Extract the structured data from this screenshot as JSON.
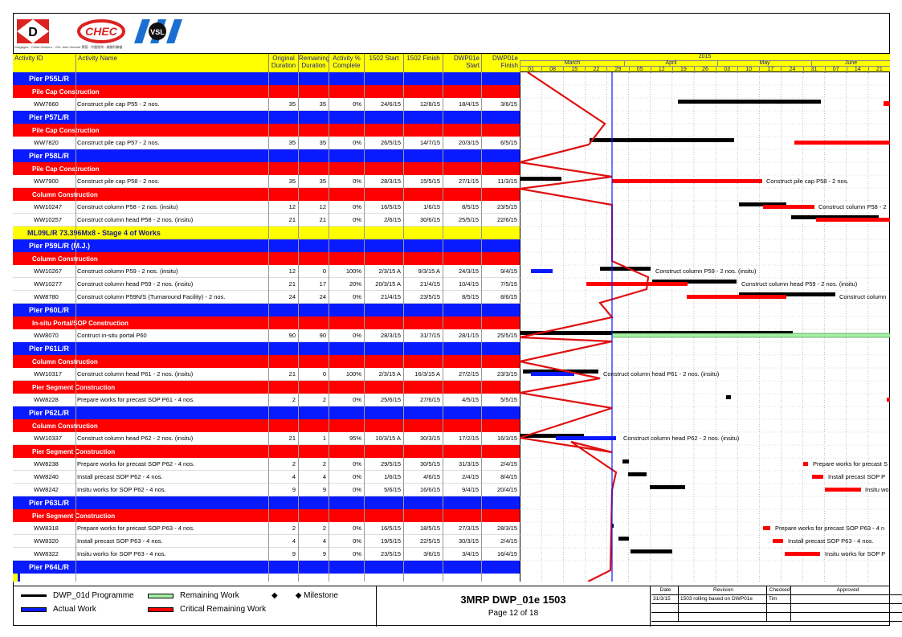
{
  "header": {
    "logos": [
      "D",
      "CHEC",
      "VSL"
    ],
    "tagline": "Dragages - China Harbour - VSL Joint Venture 寶基 - 中國港灣 - 威勝利聯營",
    "columns": [
      "Activity ID",
      "Activity Name",
      "Original Duration",
      "Remaining Duration",
      "Activity % Complete",
      "1502 Start",
      "1502 Finish",
      "DWP01e Start",
      "DWP01e Finish"
    ],
    "year": "2015",
    "months": [
      "March",
      "April",
      "May",
      "June"
    ],
    "days": [
      "01",
      "08",
      "15",
      "22",
      "29",
      "05",
      "12",
      "19",
      "26",
      "03",
      "10",
      "17",
      "24",
      "31",
      "07",
      "14",
      "21"
    ]
  },
  "rows": [
    {
      "type": "pier",
      "label": "Pier P55L/R"
    },
    {
      "type": "group",
      "label": "Pile Cap Construction"
    },
    {
      "type": "act",
      "id": "WW7660",
      "name": "Construct pile cap P55 - 2 nos.",
      "od": "35",
      "rd": "35",
      "pc": "0%",
      "s": "24/6/15",
      "f": "12/8/15",
      "ds": "18/4/15",
      "df": "3/6/15"
    },
    {
      "type": "pier",
      "label": "Pier P57L/R"
    },
    {
      "type": "group",
      "label": "Pile Cap Construction"
    },
    {
      "type": "act",
      "id": "WW7820",
      "name": "Construct pile cap P57 - 2 nos.",
      "od": "35",
      "rd": "35",
      "pc": "0%",
      "s": "26/5/15",
      "f": "14/7/15",
      "ds": "20/3/15",
      "df": "6/5/15"
    },
    {
      "type": "pier",
      "label": "Pier P58L/R"
    },
    {
      "type": "group",
      "label": "Pile Cap Construction"
    },
    {
      "type": "act",
      "id": "WW7900",
      "name": "Construct pile cap P58 - 2 nos.",
      "od": "35",
      "rd": "35",
      "pc": "0%",
      "s": "28/3/15",
      "f": "15/5/15",
      "ds": "27/1/15",
      "df": "11/3/15"
    },
    {
      "type": "group",
      "label": "Column Construction"
    },
    {
      "type": "act",
      "id": "WW10247",
      "name": "Construct column P58 - 2 nos. (insitu)",
      "od": "12",
      "rd": "12",
      "pc": "0%",
      "s": "16/5/15",
      "f": "1/6/15",
      "ds": "8/5/15",
      "df": "23/5/15"
    },
    {
      "type": "act",
      "id": "WW10257",
      "name": "Construct column head P58 - 2 nos. (insitu)",
      "od": "21",
      "rd": "21",
      "pc": "0%",
      "s": "2/6/15",
      "f": "30/6/15",
      "ds": "25/5/15",
      "df": "22/6/15"
    },
    {
      "type": "stage",
      "label": "ML09L/R 73.396Mx8 - Stage 4 of Works"
    },
    {
      "type": "pier",
      "label": "Pier P59L/R (M.J.)"
    },
    {
      "type": "group",
      "label": "Column Construction"
    },
    {
      "type": "act",
      "id": "WW10267",
      "name": "Construct column P59 - 2 nos. (insitu)",
      "od": "12",
      "rd": "0",
      "pc": "100%",
      "s": "2/3/15 A",
      "f": "9/3/15 A",
      "ds": "24/3/15",
      "df": "9/4/15"
    },
    {
      "type": "act",
      "id": "WW10277",
      "name": "Construct column head P59 - 2 nos. (insitu)",
      "od": "21",
      "rd": "17",
      "pc": "20%",
      "s": "20/3/15 A",
      "f": "21/4/15",
      "ds": "10/4/15",
      "df": "7/5/15"
    },
    {
      "type": "act",
      "id": "WW8780",
      "name": "Construct column P59N/S (Turnaround Facility) - 2 nos.",
      "od": "24",
      "rd": "24",
      "pc": "0%",
      "s": "21/4/15",
      "f": "23/5/15",
      "ds": "8/5/15",
      "df": "8/6/15"
    },
    {
      "type": "pier",
      "label": "Pier P60L/R"
    },
    {
      "type": "group",
      "label": "In-situ Portal/SOP Construction"
    },
    {
      "type": "act",
      "id": "WW8070",
      "name": "Contruct in-situ portal P60",
      "od": "90",
      "rd": "90",
      "pc": "0%",
      "s": "28/3/15",
      "f": "31/7/15",
      "ds": "28/1/15",
      "df": "25/5/15"
    },
    {
      "type": "pier",
      "label": "Pier P61L/R"
    },
    {
      "type": "group",
      "label": "Column Construction"
    },
    {
      "type": "act",
      "id": "WW10317",
      "name": "Construct column head P61 - 2 nos. (insitu)",
      "od": "21",
      "rd": "0",
      "pc": "100%",
      "s": "2/3/15 A",
      "f": "16/3/15 A",
      "ds": "27/2/15",
      "df": "23/3/15"
    },
    {
      "type": "group",
      "label": "Pier Segment Construction"
    },
    {
      "type": "act",
      "id": "WW8228",
      "name": "Prepare works for precast SOP P61 - 4 nos.",
      "od": "2",
      "rd": "2",
      "pc": "0%",
      "s": "25/6/15",
      "f": "27/6/15",
      "ds": "4/5/15",
      "df": "5/5/15"
    },
    {
      "type": "pier",
      "label": "Pier P62L/R"
    },
    {
      "type": "group",
      "label": "Column Construction"
    },
    {
      "type": "act",
      "id": "WW10337",
      "name": "Construct column head P62 - 2 nos. (insitu)",
      "od": "21",
      "rd": "1",
      "pc": "95%",
      "s": "10/3/15 A",
      "f": "30/3/15",
      "ds": "17/2/15",
      "df": "16/3/15"
    },
    {
      "type": "group",
      "label": "Pier Segment Construction"
    },
    {
      "type": "act",
      "id": "WW8238",
      "name": "Prepare works for precast SOP P62 - 4 nos.",
      "od": "2",
      "rd": "2",
      "pc": "0%",
      "s": "29/5/15",
      "f": "30/5/15",
      "ds": "31/3/15",
      "df": "2/4/15"
    },
    {
      "type": "act",
      "id": "WW8240",
      "name": "Install precast SOP P62 - 4 nos.",
      "od": "4",
      "rd": "4",
      "pc": "0%",
      "s": "1/6/15",
      "f": "4/6/15",
      "ds": "2/4/15",
      "df": "8/4/15"
    },
    {
      "type": "act",
      "id": "WW8242",
      "name": "Insitu works for SOP P62 - 4 nos.",
      "od": "9",
      "rd": "9",
      "pc": "0%",
      "s": "5/6/15",
      "f": "16/6/15",
      "ds": "9/4/15",
      "df": "20/4/15"
    },
    {
      "type": "pier",
      "label": "Pier P63L/R"
    },
    {
      "type": "group",
      "label": "Pier Segment Construction"
    },
    {
      "type": "act",
      "id": "WW8318",
      "name": "Prepare works for precast SOP P63 - 4 nos.",
      "od": "2",
      "rd": "2",
      "pc": "0%",
      "s": "16/5/15",
      "f": "18/5/15",
      "ds": "27/3/15",
      "df": "28/3/15"
    },
    {
      "type": "act",
      "id": "WW8320",
      "name": "Install precast SOP P63 - 4 nos.",
      "od": "4",
      "rd": "4",
      "pc": "0%",
      "s": "19/5/15",
      "f": "22/5/15",
      "ds": "30/3/15",
      "df": "2/4/15"
    },
    {
      "type": "act",
      "id": "WW8322",
      "name": "Insitu works for SOP P63 - 4 nos.",
      "od": "9",
      "rd": "9",
      "pc": "0%",
      "s": "23/5/15",
      "f": "3/6/15",
      "ds": "3/4/15",
      "df": "16/4/15"
    },
    {
      "type": "pier",
      "label": "Pier P64L/R"
    }
  ],
  "gantt_labels": [
    "Construct pile cap P58 - 2 nos.",
    "Construct column P58 - 2",
    "Construct column P59 - 2 nos. (insitu)",
    "Construct column head P59 - 2 nos. (insitu)",
    "Construct column",
    "Construct column head P61 - 2 nos. (insitu)",
    "Construct column head P62 - 2 nos. (insitu)",
    "Prepare works for precast S",
    "Install precast SOP P",
    "Insitu wo",
    "Prepare works for precast SOP P63 - 4 n",
    "Install precast SOP P63 - 4 nos.",
    "Insitu works for SOP P"
  ],
  "colors": {
    "blue": "#0a1aff",
    "red": "#ff0000",
    "yellow": "#ffff00",
    "green": "#a6f0a6",
    "black": "#000000"
  },
  "footer": {
    "legend": [
      {
        "label": "DWP_01d Programme",
        "swatch": "black"
      },
      {
        "label": "Remaining Work",
        "swatch": "green"
      },
      {
        "label": "◆ Milestone",
        "swatch": "diamond"
      },
      {
        "label": "Actual Work",
        "swatch": "blue"
      },
      {
        "label": "Critical Remaining Work",
        "swatch": "red"
      }
    ],
    "title": "3MRP DWP_01e 1503",
    "page": "Page 12 of 18",
    "rev_headers": [
      "Date",
      "Revision",
      "Checked",
      "Approved"
    ],
    "rev_row": [
      "31/3/15",
      "1503 rolling based on DWP01e",
      "Tim",
      ""
    ]
  }
}
